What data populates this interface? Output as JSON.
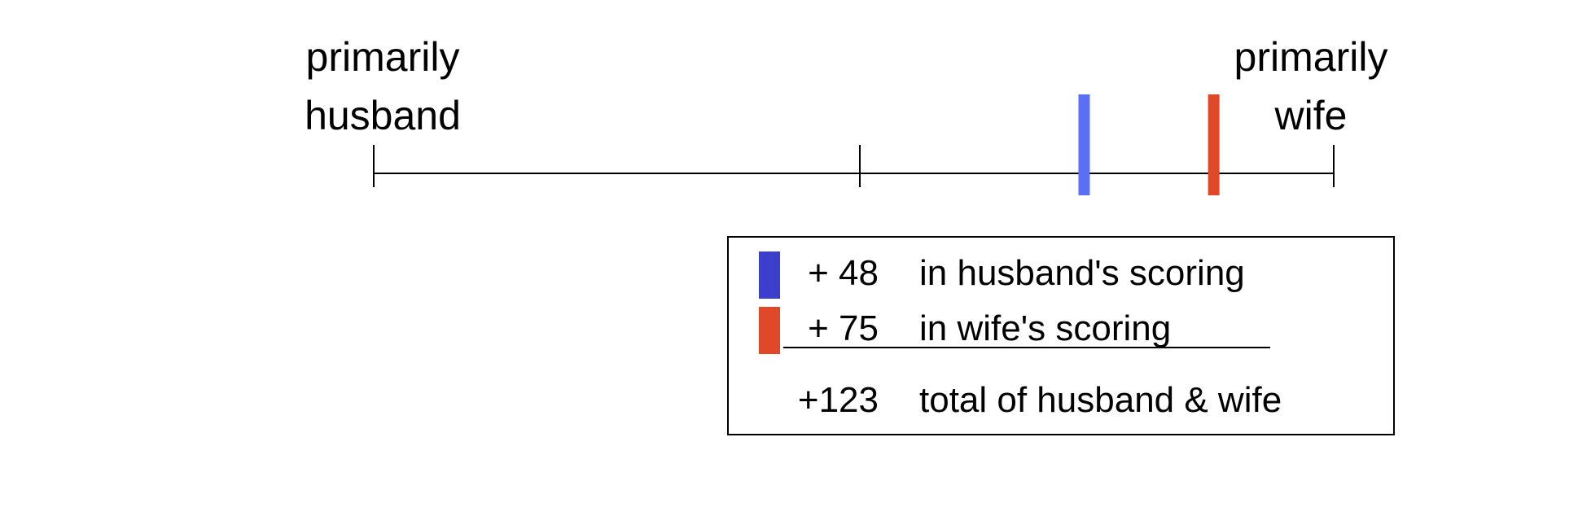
{
  "scale": {
    "left_label": [
      "primarily",
      "husband"
    ],
    "right_label": [
      "primarily",
      "wife"
    ]
  },
  "markers": [
    {
      "name": "husband",
      "value": 48,
      "color": "#5a6ff5"
    },
    {
      "name": "wife",
      "value": 75,
      "color": "#e0482a"
    }
  ],
  "legend": {
    "rows": [
      {
        "value": "+ 48",
        "text": "in husband's scoring",
        "color": "#3b3fcb"
      },
      {
        "value": "+ 75",
        "text": "in wife's scoring",
        "color": "#e0482a"
      },
      {
        "value": "+123",
        "text": "total of husband & wife"
      }
    ]
  },
  "colors": {
    "line": "#000000",
    "background": "#ffffff"
  }
}
